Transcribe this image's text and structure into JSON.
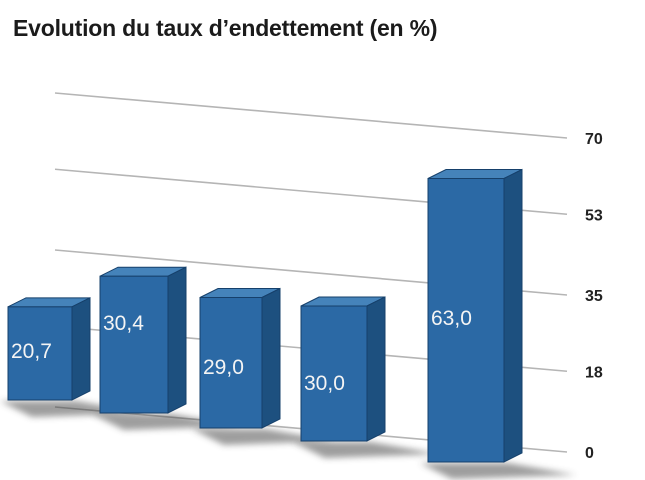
{
  "chart_data": {
    "type": "bar",
    "title": "Evolution du taux d’endettement (en %)",
    "values": [
      20.7,
      30.4,
      29.0,
      30.0,
      63.0
    ],
    "value_labels": [
      "20,7",
      "30,4",
      "29,0",
      "30,0",
      "63,0"
    ],
    "y_ticks": [
      0,
      18,
      35,
      53,
      70
    ],
    "y_tick_labels": [
      "0",
      "18",
      "35",
      "53",
      "70"
    ],
    "ylim": [
      0,
      70
    ],
    "xlabel": "",
    "ylabel": "",
    "grid": true,
    "style": "3d-perspective-bars",
    "colors": {
      "bar_front": "#2b69a5",
      "bar_top": "#4583ba",
      "bar_side": "#1d507f",
      "bar_outline": "#16406b",
      "grid": "#b5b5b5",
      "tick": "#222222",
      "value_label": "#f4f4f4",
      "shadow": "#3c3c3c",
      "title": "#1b1b1b",
      "background": "#ffffff"
    }
  }
}
